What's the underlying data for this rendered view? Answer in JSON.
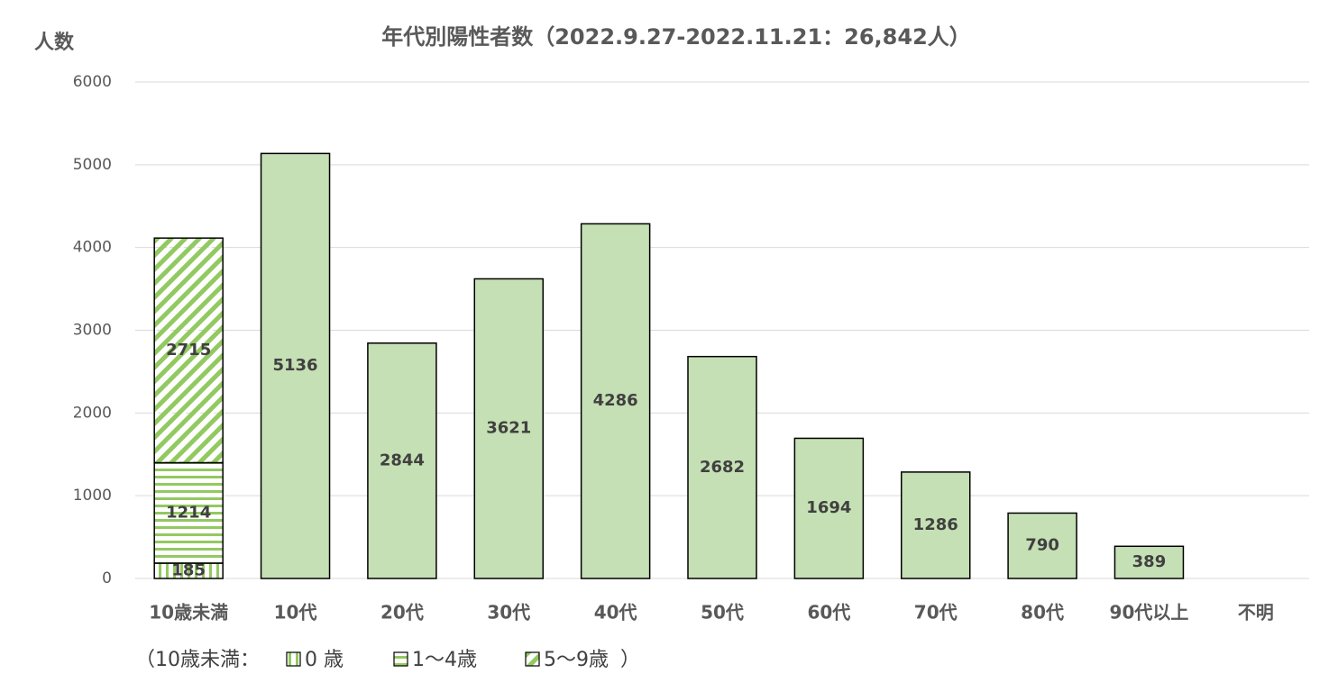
{
  "chart_data": {
    "type": "bar",
    "stacked": true,
    "title": "年代別陽性者数（2022.9.27-2022.11.21：26,842人）",
    "ylabel": "人数",
    "categories": [
      "10歳未満",
      "10代",
      "20代",
      "30代",
      "40代",
      "50代",
      "60代",
      "70代",
      "80代",
      "90代以上",
      "不明"
    ],
    "series": [
      {
        "name": "0 歳",
        "color": "#92c960",
        "pattern": "vertical",
        "values": [
          185,
          null,
          null,
          null,
          null,
          null,
          null,
          null,
          null,
          null,
          null
        ]
      },
      {
        "name": "1～4歳",
        "color": "#92c960",
        "pattern": "horizontal",
        "values": [
          1214,
          null,
          null,
          null,
          null,
          null,
          null,
          null,
          null,
          null,
          null
        ]
      },
      {
        "name": "5～9歳",
        "color": "#92c960",
        "pattern": "diagonal",
        "values": [
          2715,
          null,
          null,
          null,
          null,
          null,
          null,
          null,
          null,
          null,
          null
        ]
      },
      {
        "color": "#c5e0b4",
        "values": [
          null,
          5136,
          2844,
          3621,
          4286,
          2682,
          1694,
          1286,
          790,
          389,
          null
        ]
      }
    ],
    "legend_prefix": "（10歳未満：",
    "legend_suffix": "）",
    "ylim": [
      0,
      6000
    ],
    "yticks": [
      0,
      1000,
      2000,
      3000,
      4000,
      5000,
      6000
    ],
    "grid": true
  }
}
